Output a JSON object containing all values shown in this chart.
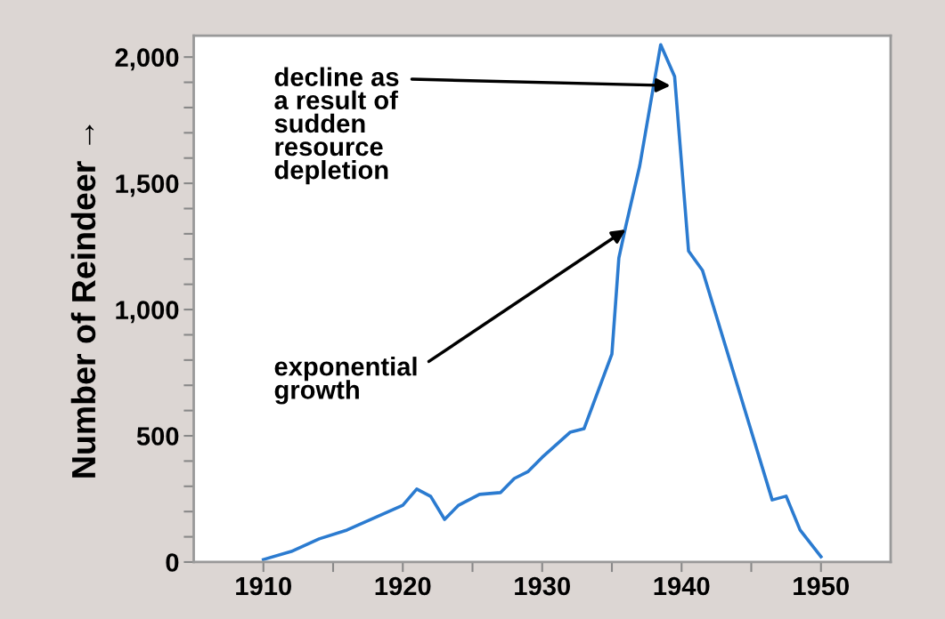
{
  "chart_data": {
    "type": "line",
    "ylabel": "Number of Reindeer →",
    "x": [
      1910,
      1912,
      1914,
      1916,
      1920,
      1921,
      1922,
      1923,
      1924,
      1925.5,
      1927,
      1928,
      1929,
      1930,
      1932,
      1933,
      1935,
      1935.5,
      1936,
      1937,
      1938.5,
      1939.5,
      1940.5,
      1941.5,
      1946.5,
      1947.5,
      1948.5,
      1950
    ],
    "series": [
      {
        "color": "#2b7bd0",
        "values": [
          10,
          42,
          92,
          127,
          225,
          289,
          260,
          169,
          225,
          268,
          275,
          331,
          359,
          415,
          514,
          528,
          824,
          1204,
          1331,
          1570,
          2049,
          1923,
          1232,
          1155,
          246,
          261,
          127,
          21
        ]
      }
    ],
    "xlim": [
      1905,
      1955
    ],
    "xticks": [
      1910,
      {
        "value": 1915,
        "label": null
      },
      1920,
      {
        "value": 1925,
        "label": null
      },
      1930,
      {
        "value": 1935,
        "label": null
      },
      1940,
      {
        "value": 1945,
        "label": null
      },
      1950
    ],
    "ylim": [
      0,
      2085
    ],
    "yticks": [
      {
        "value": 0,
        "label": "0"
      },
      {
        "value": 100,
        "label": null
      },
      {
        "value": 200,
        "label": null
      },
      {
        "value": 300,
        "label": null
      },
      {
        "value": 400,
        "label": null
      },
      {
        "value": 500,
        "label": "500"
      },
      {
        "value": 600,
        "label": null
      },
      {
        "value": 700,
        "label": null
      },
      {
        "value": 800,
        "label": null
      },
      {
        "value": 900,
        "label": null
      },
      {
        "value": 1000,
        "label": "1,000"
      },
      {
        "value": 1100,
        "label": null
      },
      {
        "value": 1200,
        "label": null
      },
      {
        "value": 1300,
        "label": null
      },
      {
        "value": 1400,
        "label": null
      },
      {
        "value": 1500,
        "label": "1,500"
      },
      {
        "value": 1600,
        "label": null
      },
      {
        "value": 1700,
        "label": null
      },
      {
        "value": 1800,
        "label": null
      },
      {
        "value": 1900,
        "label": null
      },
      {
        "value": 2000,
        "label": "2,000"
      }
    ],
    "grid": false,
    "legend": false,
    "marker": "none",
    "line_style": "solid",
    "annotations": [
      {
        "text": "decline as\na result of\nsudden\nresource\ndepletion",
        "x": 1939.2,
        "y": 1887
      },
      {
        "text": "exponential\ngrowth",
        "x": 1936,
        "y": 1317
      }
    ]
  }
}
